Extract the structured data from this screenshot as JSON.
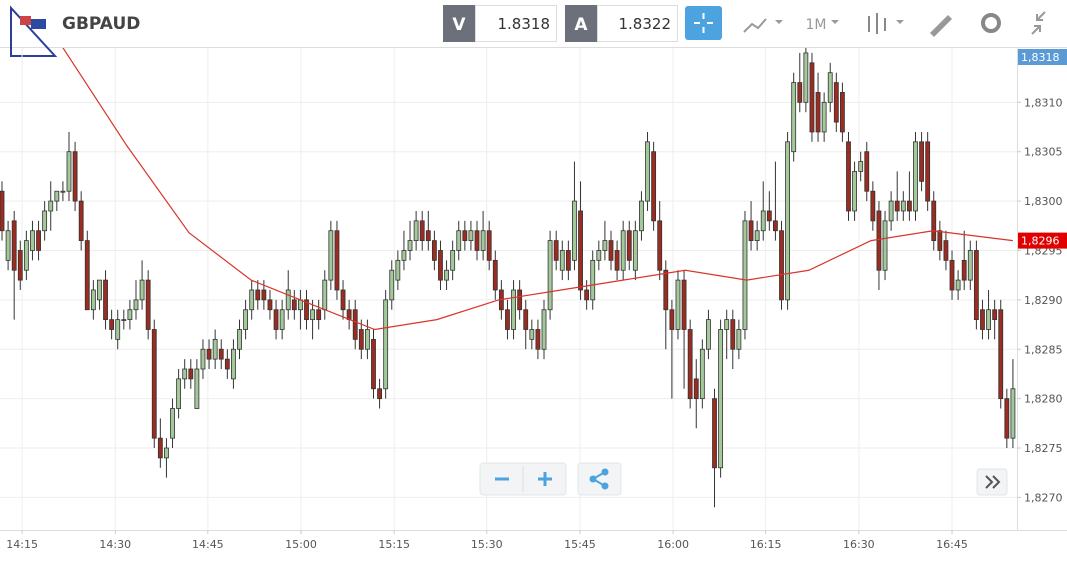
{
  "header": {
    "symbol": "GBPAUD",
    "bid_label": "V",
    "bid": "1.8318",
    "ask_label": "A",
    "ask": "1.8322",
    "period": "1M"
  },
  "chart_data": {
    "type": "candlestick",
    "up_color": "#a3c99a",
    "down_color": "#9a2c22",
    "ma_color": "#d9342b",
    "grid": true,
    "xlim": [
      -0.33,
      166.67
    ],
    "xticks": [
      {
        "value": 3.3,
        "label": "14:15"
      },
      {
        "value": 18.6,
        "label": "14:30"
      },
      {
        "value": 33.8,
        "label": "14:45"
      },
      {
        "value": 49.1,
        "label": "15:00"
      },
      {
        "value": 64.4,
        "label": "15:15"
      },
      {
        "value": 79.6,
        "label": "15:30"
      },
      {
        "value": 94.9,
        "label": "15:45"
      },
      {
        "value": 110.2,
        "label": "16:00"
      },
      {
        "value": 125.4,
        "label": "16:15"
      },
      {
        "value": 140.7,
        "label": "16:30"
      },
      {
        "value": 156.0,
        "label": "16:45"
      }
    ],
    "ylim": [
      1.82667,
      1.83155
    ],
    "yticks": [
      {
        "value": 1.827,
        "label": "1,8270"
      },
      {
        "value": 1.8275,
        "label": "1,8275"
      },
      {
        "value": 1.828,
        "label": "1,8280"
      },
      {
        "value": 1.8285,
        "label": "1,8285"
      },
      {
        "value": 1.829,
        "label": "1,8290"
      },
      {
        "value": 1.8295,
        "label": "1,8295"
      },
      {
        "value": 1.83,
        "label": "1,8300"
      },
      {
        "value": 1.8305,
        "label": "1,8305"
      },
      {
        "value": 1.831,
        "label": "1,8310"
      }
    ],
    "price_tags": [
      {
        "value": 1.8318,
        "label": "1,8318",
        "color": "#5b9bd5"
      },
      {
        "value": 1.8296,
        "label": "1,8296",
        "color": "#e00000"
      }
    ],
    "ma": {
      "x": [
        9.5,
        20.5,
        30.7,
        40.9,
        51,
        61.2,
        71.4,
        81.6,
        91.8,
        102,
        112.2,
        122.3,
        132.5,
        142.7,
        152.9,
        166
      ],
      "values": [
        1.8316,
        1.83056,
        1.82968,
        1.8292,
        1.82895,
        1.8287,
        1.8288,
        1.829,
        1.8291,
        1.8292,
        1.8293,
        1.8292,
        1.8293,
        1.8296,
        1.8297,
        1.8296
      ]
    },
    "candles": [
      [
        1.8301,
        1.8302,
        1.8296,
        1.8297
      ],
      [
        1.8294,
        1.8298,
        1.8293,
        1.8297
      ],
      [
        1.8298,
        1.8299,
        1.8288,
        1.8293
      ],
      [
        1.8295,
        1.8296,
        1.8291,
        1.8292
      ],
      [
        1.8293,
        1.8297,
        1.8292,
        1.8296
      ],
      [
        1.8295,
        1.8298,
        1.8294,
        1.8297
      ],
      [
        1.8297,
        1.8298,
        1.8294,
        1.8295
      ],
      [
        1.8297,
        1.83,
        1.8296,
        1.8299
      ],
      [
        1.8299,
        1.8302,
        1.8297,
        1.83
      ],
      [
        1.83,
        1.8301,
        1.8299,
        1.8301
      ],
      [
        1.8301,
        1.8302,
        1.83,
        1.8301
      ],
      [
        1.8301,
        1.8307,
        1.83,
        1.8305
      ],
      [
        1.8305,
        1.8306,
        1.8299,
        1.83
      ],
      [
        1.83,
        1.8301,
        1.8295,
        1.8296
      ],
      [
        1.8296,
        1.8297,
        1.8289,
        1.8289
      ],
      [
        1.8289,
        1.8292,
        1.8288,
        1.8291
      ],
      [
        1.829,
        1.8292,
        1.8289,
        1.8292
      ],
      [
        1.8292,
        1.8293,
        1.8287,
        1.8288
      ],
      [
        1.8288,
        1.8289,
        1.8286,
        1.8287
      ],
      [
        1.8286,
        1.8289,
        1.8285,
        1.8288
      ],
      [
        1.8288,
        1.8289,
        1.8287,
        1.8288
      ],
      [
        1.8288,
        1.829,
        1.8287,
        1.8289
      ],
      [
        1.8289,
        1.8292,
        1.8288,
        1.829
      ],
      [
        1.829,
        1.8294,
        1.8289,
        1.8292
      ],
      [
        1.8292,
        1.8293,
        1.8286,
        1.8287
      ],
      [
        1.8287,
        1.8288,
        1.8275,
        1.8276
      ],
      [
        1.8276,
        1.8278,
        1.8273,
        1.8274
      ],
      [
        1.8274,
        1.8276,
        1.8272,
        1.8275
      ],
      [
        1.8276,
        1.828,
        1.8275,
        1.8279
      ],
      [
        1.8279,
        1.8283,
        1.8278,
        1.8282
      ],
      [
        1.8282,
        1.8284,
        1.8281,
        1.8283
      ],
      [
        1.8283,
        1.8284,
        1.8281,
        1.8282
      ],
      [
        1.8279,
        1.8284,
        1.8279,
        1.8283
      ],
      [
        1.8283,
        1.8286,
        1.8282,
        1.8285
      ],
      [
        1.8285,
        1.8286,
        1.8283,
        1.8284
      ],
      [
        1.8284,
        1.8287,
        1.8283,
        1.8286
      ],
      [
        1.8285,
        1.8286,
        1.8283,
        1.8284
      ],
      [
        1.8284,
        1.8285,
        1.8282,
        1.8283
      ],
      [
        1.8282,
        1.8286,
        1.8281,
        1.8285
      ],
      [
        1.8285,
        1.8288,
        1.8284,
        1.8287
      ],
      [
        1.8287,
        1.829,
        1.8286,
        1.8289
      ],
      [
        1.8289,
        1.8292,
        1.8288,
        1.8291
      ],
      [
        1.8291,
        1.8292,
        1.8289,
        1.829
      ],
      [
        1.8291,
        1.8292,
        1.8289,
        1.829
      ],
      [
        1.829,
        1.8291,
        1.8288,
        1.8289
      ],
      [
        1.8289,
        1.829,
        1.8286,
        1.8287
      ],
      [
        1.8287,
        1.829,
        1.8286,
        1.8289
      ],
      [
        1.8289,
        1.8293,
        1.8288,
        1.8291
      ],
      [
        1.829,
        1.8291,
        1.8288,
        1.8289
      ],
      [
        1.8289,
        1.8291,
        1.8287,
        1.829
      ],
      [
        1.829,
        1.8291,
        1.8287,
        1.8288
      ],
      [
        1.8288,
        1.829,
        1.8286,
        1.8289
      ],
      [
        1.8289,
        1.829,
        1.8287,
        1.8288
      ],
      [
        1.8289,
        1.8293,
        1.8288,
        1.8292
      ],
      [
        1.8292,
        1.8298,
        1.8291,
        1.8297
      ],
      [
        1.8297,
        1.8298,
        1.829,
        1.8291
      ],
      [
        1.8291,
        1.8292,
        1.8288,
        1.8289
      ],
      [
        1.8289,
        1.829,
        1.8287,
        1.8288
      ],
      [
        1.8289,
        1.829,
        1.8285,
        1.8286
      ],
      [
        1.8287,
        1.8288,
        1.8284,
        1.8285
      ],
      [
        1.8285,
        1.8288,
        1.8284,
        1.8287
      ],
      [
        1.8286,
        1.8287,
        1.828,
        1.8281
      ],
      [
        1.8281,
        1.8282,
        1.8279,
        1.828
      ],
      [
        1.8281,
        1.8291,
        1.828,
        1.829
      ],
      [
        1.829,
        1.8294,
        1.8289,
        1.8293
      ],
      [
        1.8292,
        1.8295,
        1.8291,
        1.8294
      ],
      [
        1.8294,
        1.8297,
        1.8293,
        1.8295
      ],
      [
        1.8295,
        1.8298,
        1.8294,
        1.8296
      ],
      [
        1.8296,
        1.8299,
        1.8295,
        1.8298
      ],
      [
        1.8298,
        1.8299,
        1.8295,
        1.8296
      ],
      [
        1.8297,
        1.8299,
        1.8295,
        1.8296
      ],
      [
        1.8296,
        1.8297,
        1.8293,
        1.8294
      ],
      [
        1.8295,
        1.8296,
        1.8291,
        1.8292
      ],
      [
        1.8292,
        1.8294,
        1.8291,
        1.8293
      ],
      [
        1.8293,
        1.8296,
        1.8292,
        1.8295
      ],
      [
        1.8295,
        1.8298,
        1.8294,
        1.8297
      ],
      [
        1.8297,
        1.8298,
        1.8295,
        1.8296
      ],
      [
        1.8296,
        1.8298,
        1.8295,
        1.8297
      ],
      [
        1.8297,
        1.8298,
        1.8294,
        1.8295
      ],
      [
        1.8295,
        1.8299,
        1.8294,
        1.8297
      ],
      [
        1.8297,
        1.8298,
        1.8293,
        1.8294
      ],
      [
        1.8294,
        1.8295,
        1.829,
        1.8291
      ],
      [
        1.8291,
        1.8292,
        1.8288,
        1.8289
      ],
      [
        1.8289,
        1.829,
        1.8286,
        1.8287
      ],
      [
        1.8287,
        1.8292,
        1.8286,
        1.8291
      ],
      [
        1.8291,
        1.8292,
        1.8288,
        1.8289
      ],
      [
        1.8289,
        1.829,
        1.8285,
        1.8287
      ],
      [
        1.8286,
        1.8288,
        1.8285,
        1.8287
      ],
      [
        1.8287,
        1.8288,
        1.8284,
        1.8285
      ],
      [
        1.8285,
        1.829,
        1.8284,
        1.8289
      ],
      [
        1.8289,
        1.8297,
        1.8288,
        1.8296
      ],
      [
        1.8296,
        1.8297,
        1.8293,
        1.8294
      ],
      [
        1.8293,
        1.8296,
        1.8292,
        1.8295
      ],
      [
        1.8295,
        1.8296,
        1.8292,
        1.8293
      ],
      [
        1.8294,
        1.8304,
        1.8293,
        1.83
      ],
      [
        1.8299,
        1.8302,
        1.829,
        1.8291
      ],
      [
        1.8291,
        1.8292,
        1.8289,
        1.829
      ],
      [
        1.829,
        1.8295,
        1.8289,
        1.8294
      ],
      [
        1.8294,
        1.8296,
        1.8293,
        1.8295
      ],
      [
        1.8295,
        1.8298,
        1.8294,
        1.8296
      ],
      [
        1.8296,
        1.8297,
        1.8293,
        1.8294
      ],
      [
        1.8295,
        1.8296,
        1.8292,
        1.8293
      ],
      [
        1.8293,
        1.8298,
        1.8292,
        1.8297
      ],
      [
        1.8297,
        1.8298,
        1.8293,
        1.8294
      ],
      [
        1.8293,
        1.8298,
        1.8292,
        1.8297
      ],
      [
        1.8297,
        1.8301,
        1.8296,
        1.83
      ],
      [
        1.83,
        1.8307,
        1.8299,
        1.8306
      ],
      [
        1.8305,
        1.8306,
        1.8297,
        1.8298
      ],
      [
        1.8298,
        1.83,
        1.8292,
        1.8293
      ],
      [
        1.8293,
        1.8294,
        1.8285,
        1.8289
      ],
      [
        1.8289,
        1.829,
        1.828,
        1.8287
      ],
      [
        1.8287,
        1.8293,
        1.8286,
        1.8292
      ],
      [
        1.8292,
        1.8293,
        1.8281,
        1.8287
      ],
      [
        1.8287,
        1.8288,
        1.8279,
        1.828
      ],
      [
        1.8282,
        1.8284,
        1.8277,
        1.828
      ],
      [
        1.828,
        1.8286,
        1.8279,
        1.8285
      ],
      [
        1.8285,
        1.8289,
        1.8284,
        1.8288
      ],
      [
        1.828,
        1.8281,
        1.8269,
        1.8273
      ],
      [
        1.8273,
        1.8288,
        1.8272,
        1.8287
      ],
      [
        1.8287,
        1.8289,
        1.8284,
        1.8288
      ],
      [
        1.8288,
        1.8289,
        1.8283,
        1.8285
      ],
      [
        1.8285,
        1.8288,
        1.8284,
        1.8287
      ],
      [
        1.8287,
        1.8299,
        1.8286,
        1.8298
      ],
      [
        1.8298,
        1.83,
        1.8295,
        1.8296
      ],
      [
        1.8296,
        1.8298,
        1.8295,
        1.8297
      ],
      [
        1.8297,
        1.8302,
        1.8296,
        1.8299
      ],
      [
        1.8299,
        1.8301,
        1.8297,
        1.8298
      ],
      [
        1.8298,
        1.8304,
        1.8296,
        1.8297
      ],
      [
        1.8297,
        1.8298,
        1.8289,
        1.829
      ],
      [
        1.829,
        1.8307,
        1.8289,
        1.8306
      ],
      [
        1.8305,
        1.8313,
        1.8304,
        1.8312
      ],
      [
        1.8312,
        1.8315,
        1.8309,
        1.831
      ],
      [
        1.831,
        1.8316,
        1.8309,
        1.8315
      ],
      [
        1.8314,
        1.8315,
        1.8306,
        1.8307
      ],
      [
        1.8311,
        1.8313,
        1.8306,
        1.8307
      ],
      [
        1.8307,
        1.8311,
        1.8306,
        1.831
      ],
      [
        1.831,
        1.8314,
        1.8309,
        1.8313
      ],
      [
        1.8312,
        1.8313,
        1.8307,
        1.8308
      ],
      [
        1.8311,
        1.8312,
        1.8306,
        1.8307
      ],
      [
        1.8306,
        1.8307,
        1.8298,
        1.8299
      ],
      [
        1.8299,
        1.8304,
        1.8298,
        1.8303
      ],
      [
        1.8303,
        1.8305,
        1.8302,
        1.8304
      ],
      [
        1.8305,
        1.8306,
        1.83,
        1.8301
      ],
      [
        1.8301,
        1.8302,
        1.8297,
        1.8298
      ],
      [
        1.8299,
        1.83,
        1.8291,
        1.8293
      ],
      [
        1.8293,
        1.8299,
        1.8292,
        1.8298
      ],
      [
        1.8298,
        1.8301,
        1.8297,
        1.83
      ],
      [
        1.83,
        1.8303,
        1.8298,
        1.8299
      ],
      [
        1.8299,
        1.8301,
        1.8298,
        1.83
      ],
      [
        1.83,
        1.8303,
        1.8298,
        1.8299
      ],
      [
        1.8299,
        1.8307,
        1.8298,
        1.8306
      ],
      [
        1.8306,
        1.8307,
        1.8301,
        1.8302
      ],
      [
        1.8306,
        1.8307,
        1.8299,
        1.83
      ],
      [
        1.83,
        1.8301,
        1.8295,
        1.8296
      ],
      [
        1.8297,
        1.8298,
        1.8294,
        1.8295
      ],
      [
        1.8296,
        1.8297,
        1.8293,
        1.8294
      ],
      [
        1.8294,
        1.8295,
        1.829,
        1.8291
      ],
      [
        1.8291,
        1.8293,
        1.829,
        1.8292
      ],
      [
        1.8294,
        1.8297,
        1.8291,
        1.8292
      ],
      [
        1.8292,
        1.8296,
        1.8291,
        1.8295
      ],
      [
        1.8295,
        1.8296,
        1.8287,
        1.8288
      ],
      [
        1.8289,
        1.829,
        1.8286,
        1.8287
      ],
      [
        1.8287,
        1.8291,
        1.8286,
        1.8289
      ],
      [
        1.8289,
        1.829,
        1.8286,
        1.8288
      ],
      [
        1.8289,
        1.829,
        1.8279,
        1.828
      ],
      [
        1.828,
        1.8281,
        1.8275,
        1.8276
      ],
      [
        1.8276,
        1.8284,
        1.8275,
        1.8281
      ]
    ]
  }
}
